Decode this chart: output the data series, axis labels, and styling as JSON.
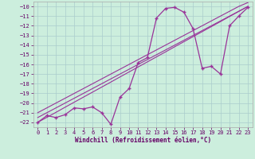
{
  "xlabel": "Windchill (Refroidissement éolien,°C)",
  "background_color": "#cceedd",
  "grid_color": "#aacccc",
  "line_color": "#993399",
  "x_data": [
    0,
    1,
    2,
    3,
    4,
    5,
    6,
    7,
    8,
    9,
    10,
    11,
    12,
    13,
    14,
    15,
    16,
    17,
    18,
    19,
    20,
    21,
    22,
    23
  ],
  "y_curve": [
    -22.0,
    -21.3,
    -21.5,
    -21.2,
    -20.5,
    -20.6,
    -20.4,
    -21.0,
    -22.2,
    -19.4,
    -18.5,
    -15.8,
    -15.3,
    -11.2,
    -10.2,
    -10.1,
    -10.6,
    -12.3,
    -16.4,
    -16.2,
    -17.0,
    -12.0,
    -11.0,
    -10.1
  ],
  "y_line1": [
    -22.0,
    -21.48,
    -20.96,
    -20.43,
    -19.91,
    -19.39,
    -18.87,
    -18.35,
    -17.83,
    -17.3,
    -16.78,
    -16.26,
    -15.74,
    -15.22,
    -14.7,
    -14.17,
    -13.65,
    -13.13,
    -12.61,
    -12.09,
    -11.57,
    -11.04,
    -10.52,
    -10.0
  ],
  "y_line2": [
    -21.5,
    -21.0,
    -20.5,
    -20.0,
    -19.5,
    -19.0,
    -18.5,
    -18.0,
    -17.5,
    -17.0,
    -16.5,
    -16.0,
    -15.5,
    -15.0,
    -14.5,
    -14.0,
    -13.5,
    -13.0,
    -12.5,
    -12.0,
    -11.5,
    -11.0,
    -10.5,
    -10.0
  ],
  "y_line3": [
    -21.0,
    -20.5,
    -20.0,
    -19.5,
    -19.0,
    -18.5,
    -18.0,
    -17.5,
    -17.0,
    -16.5,
    -16.0,
    -15.5,
    -15.0,
    -14.5,
    -14.0,
    -13.5,
    -13.0,
    -12.5,
    -12.0,
    -11.5,
    -11.0,
    -10.5,
    -10.0,
    -9.6
  ],
  "xlim": [
    -0.5,
    23.5
  ],
  "ylim": [
    -22.5,
    -9.5
  ],
  "yticks": [
    -10,
    -11,
    -12,
    -13,
    -14,
    -15,
    -16,
    -17,
    -18,
    -19,
    -20,
    -21,
    -22
  ],
  "xticks": [
    0,
    1,
    2,
    3,
    4,
    5,
    6,
    7,
    8,
    9,
    10,
    11,
    12,
    13,
    14,
    15,
    16,
    17,
    18,
    19,
    20,
    21,
    22,
    23
  ],
  "font": "monospace",
  "tick_color": "#660066",
  "label_color": "#660066"
}
